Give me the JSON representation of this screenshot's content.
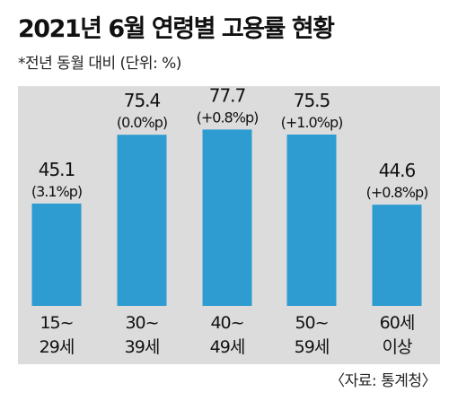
{
  "header": {
    "title": "2021년 6월 연령별 고용률 현황",
    "subtitle": "*전년 동월 대비 (단위: %)"
  },
  "footer": {
    "source": "〈자료: 통계청〉"
  },
  "colors": {
    "bar": "#2e9bd1",
    "panel_bg": "#dcdcdc"
  },
  "chart_data": {
    "type": "bar",
    "title": "2021년 6월 연령별 고용률 현황",
    "categories": [
      [
        "15~",
        "29세"
      ],
      [
        "30~",
        "39세"
      ],
      [
        "40~",
        "49세"
      ],
      [
        "50~",
        "59세"
      ],
      [
        "60세",
        "이상"
      ]
    ],
    "values": [
      45.1,
      75.4,
      77.7,
      75.5,
      44.6
    ],
    "value_labels": [
      "45.1",
      "75.4",
      "77.7",
      "75.5",
      "44.6"
    ],
    "change_labels": [
      "(3.1%p)",
      "(0.0%p)",
      "(+0.8%p)",
      "(+1.0%p)",
      "(+0.8%p)"
    ],
    "xlabel": "",
    "ylabel": "",
    "grid": false,
    "legend": "none"
  }
}
